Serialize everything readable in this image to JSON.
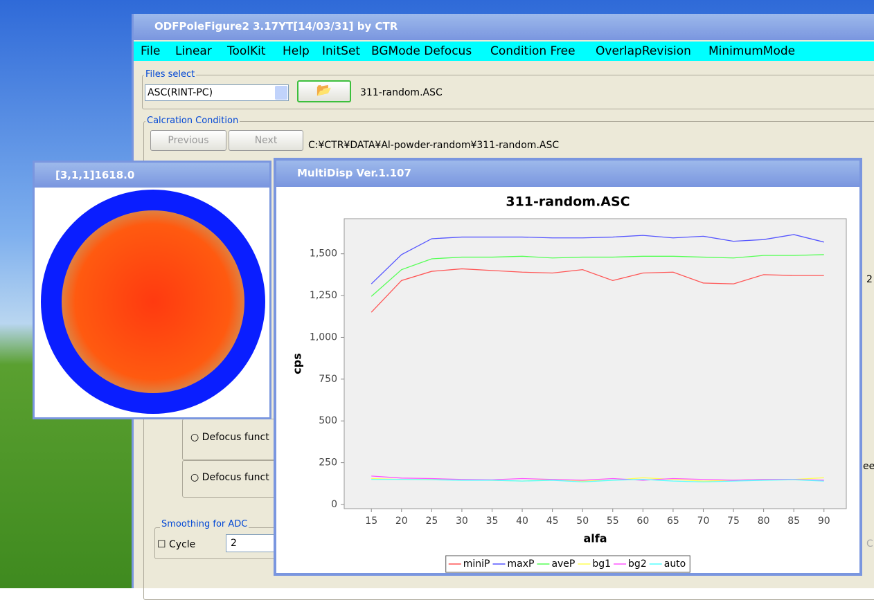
{
  "main_window": {
    "title": "ODFPoleFigure2 3.17YT[14/03/31] by CTR",
    "menu": [
      "File",
      "Linear",
      "ToolKit",
      "Help",
      "InitSet",
      "BGMode Defocus",
      "Condition Free",
      "OverlapRevision",
      "MinimumMode"
    ],
    "files_select": {
      "label": "Files select",
      "format": "ASC(RINT-PC)",
      "file": "311-random.ASC"
    },
    "calc_condition": {
      "label": "Calcration Condition",
      "previous": "Previous",
      "next": "Next",
      "path": "C:¥CTR¥DATA¥Al-powder-random¥311-random.ASC"
    },
    "defocus_options": [
      "Defocus funct",
      "Defocus funct"
    ],
    "smoothing": {
      "label": "Smoothing for ADC",
      "cycle": "Cycle",
      "cycle_value": "2"
    },
    "edge_fragments": [
      "2",
      "ee",
      "C"
    ]
  },
  "pole_window": {
    "title": "[3,1,1]1618.0"
  },
  "chart_window": {
    "title": "MultiDisp Ver.1.107"
  },
  "chart_data": {
    "type": "line",
    "title": "311-random.ASC",
    "x_label": "alfa",
    "y_label": "cps",
    "x": [
      15,
      20,
      25,
      30,
      35,
      40,
      45,
      50,
      55,
      60,
      65,
      70,
      75,
      80,
      85,
      90
    ],
    "series": [
      {
        "name": "miniP",
        "color": "#ff5555",
        "values": [
          1150,
          1340,
          1395,
          1410,
          1400,
          1390,
          1385,
          1405,
          1340,
          1385,
          1390,
          1325,
          1320,
          1375,
          1370,
          1370
        ]
      },
      {
        "name": "maxP",
        "color": "#5555ff",
        "values": [
          1320,
          1495,
          1590,
          1600,
          1600,
          1600,
          1595,
          1595,
          1600,
          1610,
          1595,
          1605,
          1575,
          1585,
          1615,
          1570
        ]
      },
      {
        "name": "aveP",
        "color": "#55ff55",
        "values": [
          1245,
          1405,
          1470,
          1480,
          1480,
          1485,
          1475,
          1480,
          1480,
          1485,
          1485,
          1480,
          1475,
          1490,
          1490,
          1495
        ]
      },
      {
        "name": "bg1",
        "color": "#ffff55",
        "values": [
          155,
          150,
          150,
          148,
          145,
          140,
          150,
          140,
          145,
          160,
          150,
          140,
          145,
          150,
          150,
          160
        ]
      },
      {
        "name": "bg2",
        "color": "#ff55ff",
        "values": [
          170,
          158,
          155,
          150,
          148,
          155,
          150,
          145,
          155,
          145,
          155,
          150,
          145,
          150,
          150,
          145
        ]
      },
      {
        "name": "auto",
        "color": "#55ffff",
        "values": [
          150,
          150,
          148,
          145,
          145,
          140,
          145,
          135,
          145,
          150,
          140,
          135,
          140,
          145,
          148,
          140
        ]
      }
    ],
    "xlim": [
      10.5,
      93.7
    ],
    "xticks": [
      15,
      20,
      25,
      30,
      35,
      40,
      45,
      50,
      55,
      60,
      65,
      70,
      75,
      80,
      85,
      90
    ],
    "ylim": [
      -25,
      1710
    ],
    "yticks": [
      0,
      250,
      500,
      750,
      {
        "value": 1000,
        "label": "1,000"
      },
      {
        "value": 1250,
        "label": "1,250"
      },
      {
        "value": 1500,
        "label": "1,500"
      }
    ],
    "grid": false,
    "legend": "bottom"
  }
}
